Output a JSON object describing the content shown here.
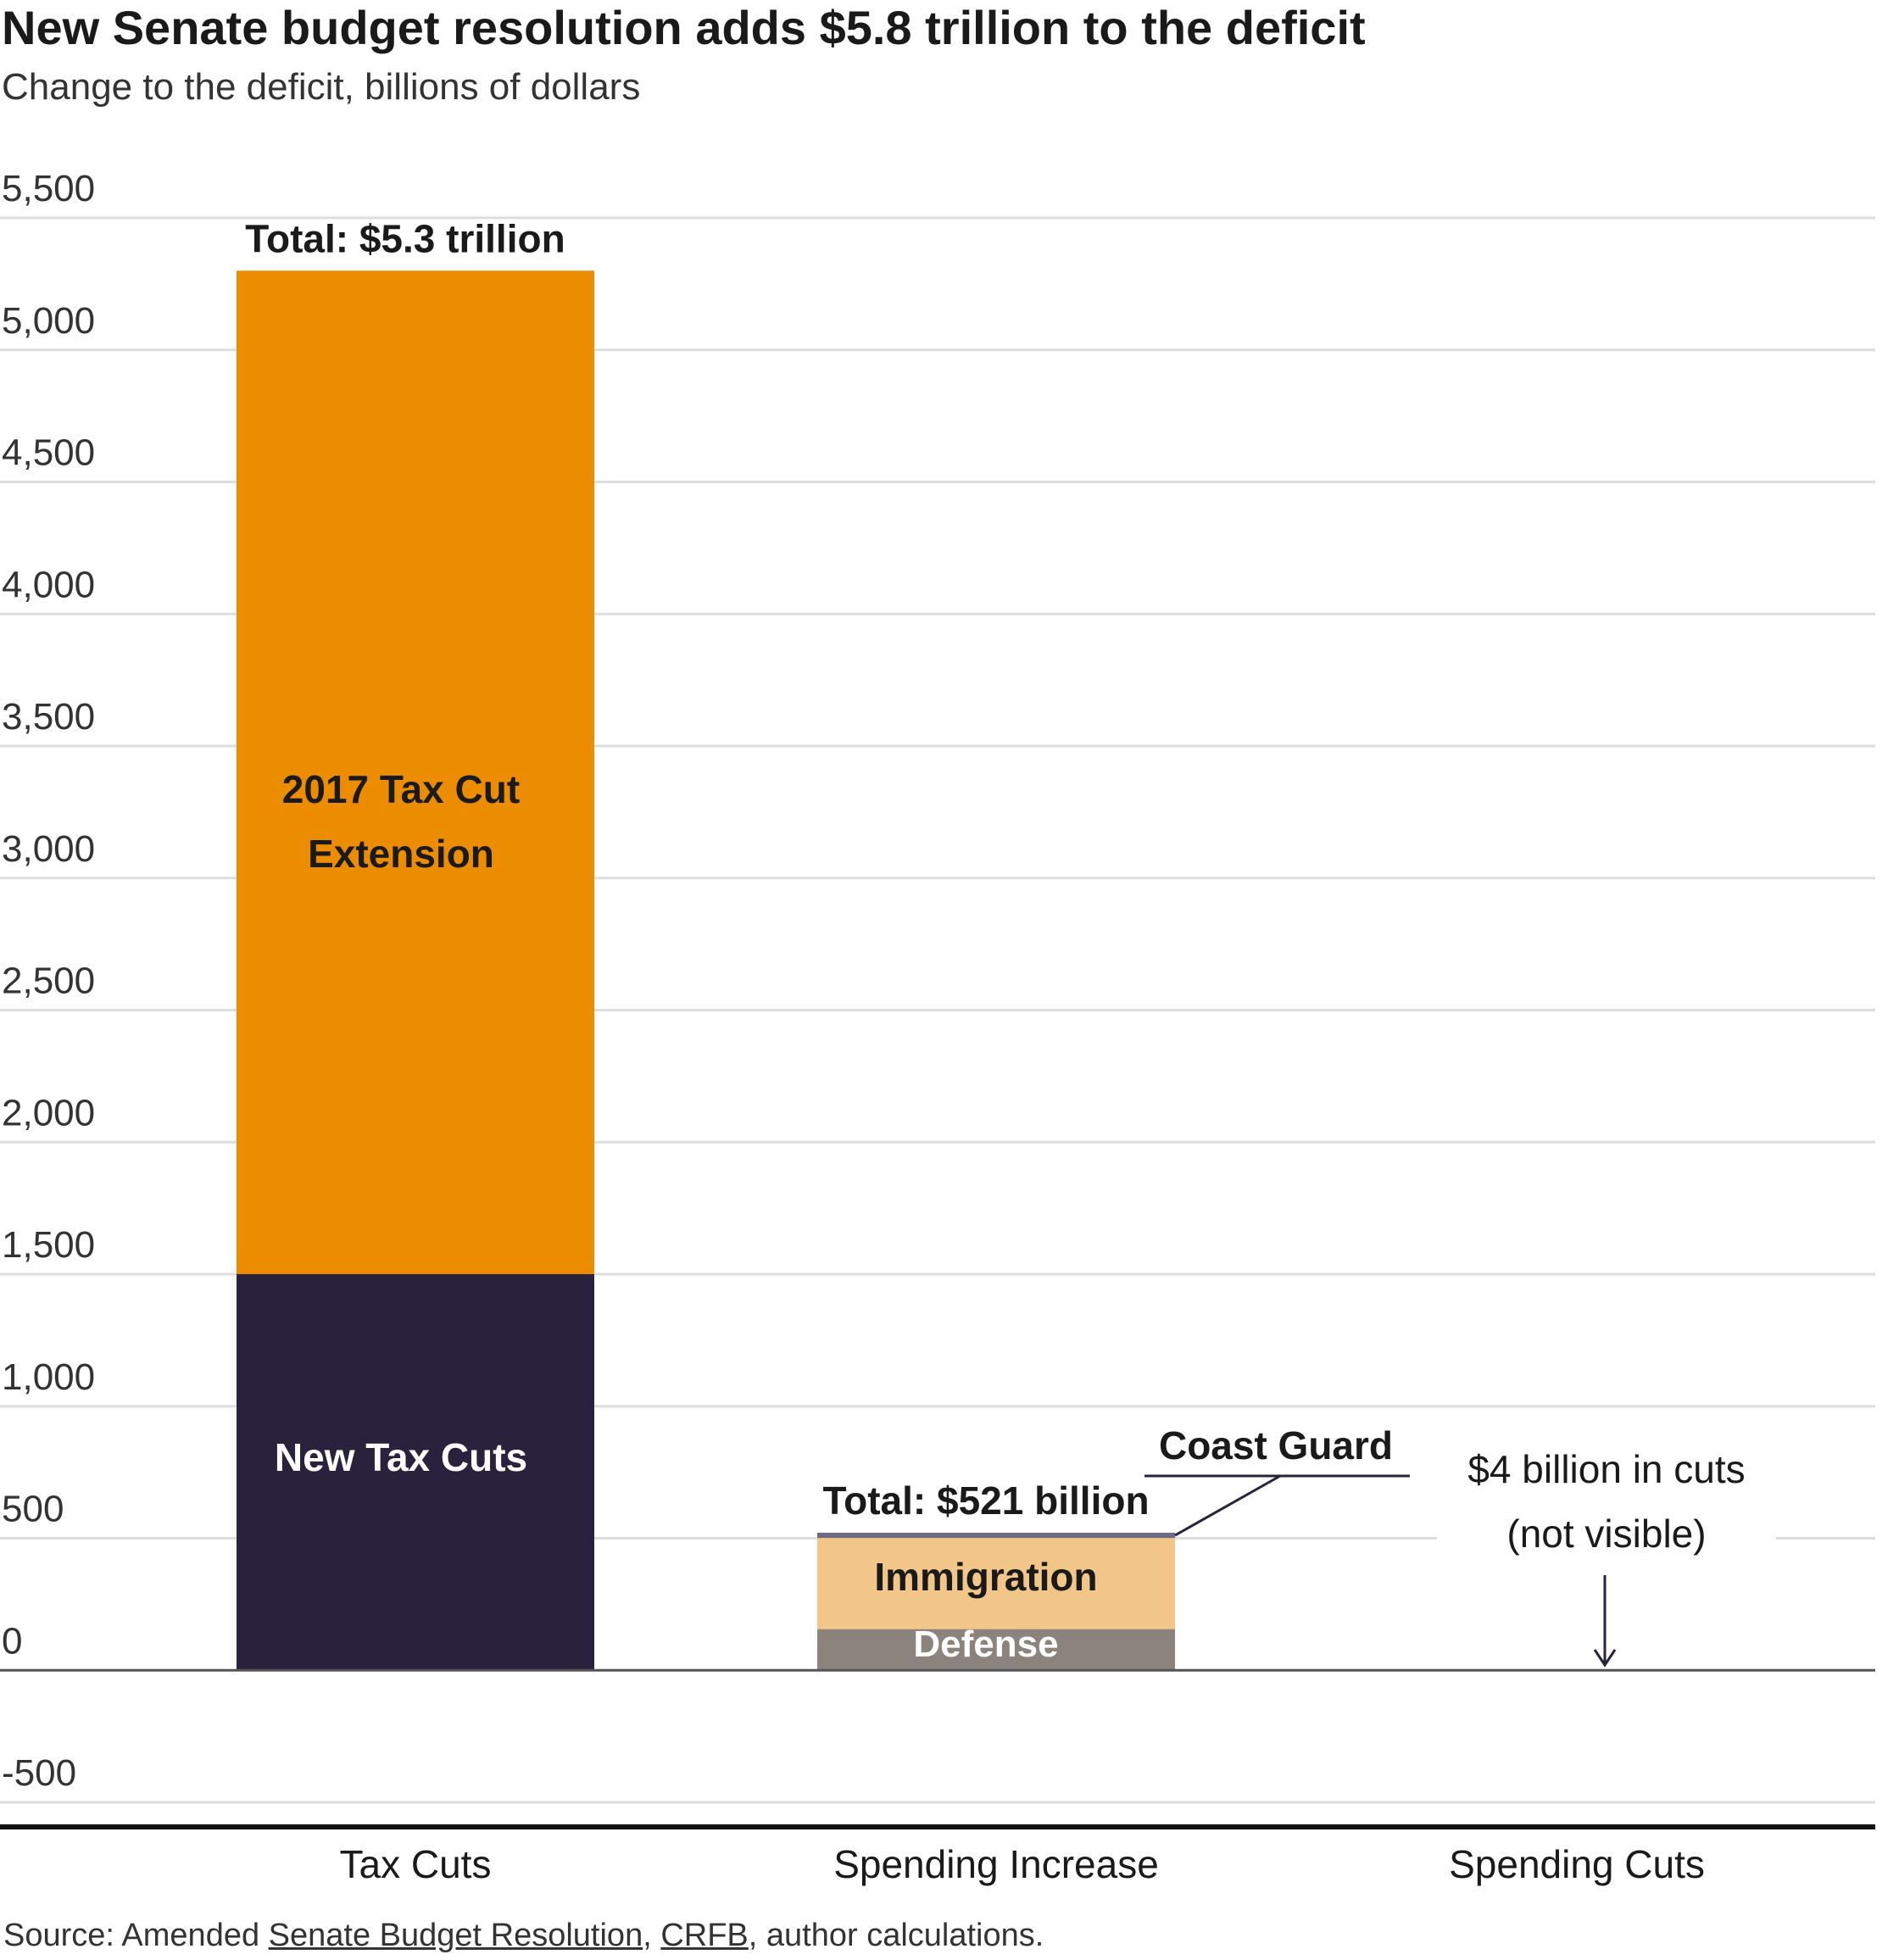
{
  "title": "New Senate budget resolution adds $5.8 trillion to the deficit",
  "subtitle": "Change to the deficit, billions of dollars",
  "source": {
    "prefix": "Source: Amended ",
    "link1": "Senate Budget Resolution",
    "sep": ", ",
    "link2": "CRFB",
    "suffix": ", author calculations."
  },
  "chart_data": {
    "type": "bar",
    "stacked": true,
    "categories": [
      "Tax Cuts",
      "Spending Increase",
      "Spending Cuts"
    ],
    "ylim": [
      -500,
      5500
    ],
    "yticks": [
      5500,
      5000,
      4500,
      4000,
      3500,
      3000,
      2500,
      2000,
      1500,
      1000,
      500,
      0,
      -500
    ],
    "ytick_labels": [
      "5,500",
      "5,000",
      "4,500",
      "4,000",
      "3,500",
      "3,000",
      "2,500",
      "2,000",
      "1,500",
      "1,000",
      "500",
      "0",
      "-500"
    ],
    "grid": true,
    "series": [
      {
        "name": "New Tax Cuts",
        "category": "Tax Cuts",
        "base": 0,
        "value": 1500,
        "color": "#28223d",
        "label_color": "#ffffff"
      },
      {
        "name": "2017 Tax Cut Extension",
        "category": "Tax Cuts",
        "base": 1500,
        "value": 3800,
        "color": "#ec8c00",
        "label_color": "#1a1a1a"
      },
      {
        "name": "Defense",
        "category": "Spending Increase",
        "base": 0,
        "value": 156,
        "color": "#8c847c",
        "label_color": "#ffffff"
      },
      {
        "name": "Immigration",
        "category": "Spending Increase",
        "base": 156,
        "value": 345,
        "color": "#f2c688",
        "label_color": "#1a1a1a"
      },
      {
        "name": "Coast Guard",
        "category": "Spending Increase",
        "base": 501,
        "value": 20,
        "color": "#6e6a86",
        "label_color": "#1a1a1a"
      },
      {
        "name": "",
        "category": "Spending Cuts",
        "base": 0,
        "value": -4,
        "color": "#28223d",
        "label_color": "#1a1a1a"
      }
    ],
    "totals": [
      {
        "category": "Tax Cuts",
        "label": "Total: $5.3 trillion",
        "value": 5300
      },
      {
        "category": "Spending Increase",
        "label": "Total: $521 billion",
        "value": 521
      }
    ],
    "annotations": [
      {
        "category": "Spending Cuts",
        "text_line1": "$4 billion in cuts",
        "text_line2": "(not visible)"
      }
    ],
    "bar_labels": {
      "New Tax Cuts": [
        "New Tax Cuts"
      ],
      "2017 Tax Cut Extension": [
        "2017 Tax Cut",
        "Extension"
      ],
      "Defense": [
        "Defense"
      ],
      "Immigration": [
        "Immigration"
      ],
      "Coast Guard": [
        "Coast Guard"
      ]
    },
    "colors": {
      "grid": "#dddddd",
      "zero_line": "#555555",
      "baseline": "#111111",
      "text": "#1a1a1a"
    }
  }
}
